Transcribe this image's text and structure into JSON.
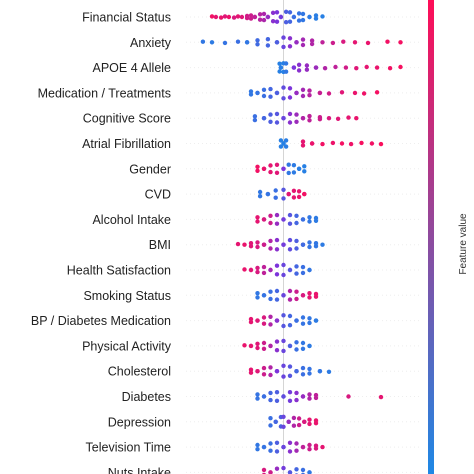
{
  "chart_data": {
    "type": "scatter",
    "subtype": "beeswarm",
    "features": [
      {
        "name": "Financial Status",
        "points": [
          {
            "x": -0.55,
            "v": 0.95
          },
          {
            "x": -0.52,
            "v": 0.9
          },
          {
            "x": -0.48,
            "v": 0.92
          },
          {
            "x": -0.45,
            "v": 0.88
          },
          {
            "x": -0.42,
            "v": 0.93
          },
          {
            "x": -0.38,
            "v": 0.85
          },
          {
            "x": -0.35,
            "v": 0.9
          },
          {
            "x": -0.32,
            "v": 0.87
          },
          {
            "x": -0.28,
            "v": 0.82
          },
          {
            "x": -0.25,
            "v": 0.8
          },
          {
            "x": -0.22,
            "v": 0.75
          },
          {
            "x": -0.18,
            "v": 0.72
          },
          {
            "x": -0.15,
            "v": 0.68
          },
          {
            "x": -0.12,
            "v": 0.6
          },
          {
            "x": -0.08,
            "v": 0.55
          },
          {
            "x": -0.05,
            "v": 0.5
          },
          {
            "x": -0.02,
            "v": 0.45
          },
          {
            "x": 0.02,
            "v": 0.25
          },
          {
            "x": 0.05,
            "v": 0.2
          },
          {
            "x": 0.08,
            "v": 0.15
          },
          {
            "x": 0.12,
            "v": 0.12
          },
          {
            "x": 0.15,
            "v": 0.1
          },
          {
            "x": 0.2,
            "v": 0.08
          },
          {
            "x": 0.25,
            "v": 0.06
          },
          {
            "x": 0.3,
            "v": 0.05
          }
        ]
      },
      {
        "name": "Anxiety",
        "points": [
          {
            "x": -0.62,
            "v": 0.1
          },
          {
            "x": -0.55,
            "v": 0.08
          },
          {
            "x": -0.45,
            "v": 0.12
          },
          {
            "x": -0.35,
            "v": 0.15
          },
          {
            "x": -0.28,
            "v": 0.1
          },
          {
            "x": -0.2,
            "v": 0.18
          },
          {
            "x": -0.12,
            "v": 0.2
          },
          {
            "x": -0.05,
            "v": 0.25
          },
          {
            "x": 0.0,
            "v": 0.4
          },
          {
            "x": 0.05,
            "v": 0.55
          },
          {
            "x": 0.1,
            "v": 0.6
          },
          {
            "x": 0.15,
            "v": 0.65
          },
          {
            "x": 0.22,
            "v": 0.7
          },
          {
            "x": 0.3,
            "v": 0.75
          },
          {
            "x": 0.38,
            "v": 0.8
          },
          {
            "x": 0.46,
            "v": 0.85
          },
          {
            "x": 0.55,
            "v": 0.9
          },
          {
            "x": 0.65,
            "v": 0.92
          },
          {
            "x": 0.8,
            "v": 0.95
          },
          {
            "x": 0.9,
            "v": 0.96
          }
        ]
      },
      {
        "name": "APOE 4 Allele",
        "points": [
          {
            "x": -0.03,
            "v": 0.05
          },
          {
            "x": -0.02,
            "v": 0.06
          },
          {
            "x": 0.0,
            "v": 0.05
          },
          {
            "x": 0.02,
            "v": 0.1
          },
          {
            "x": 0.08,
            "v": 0.5
          },
          {
            "x": 0.12,
            "v": 0.55
          },
          {
            "x": 0.18,
            "v": 0.6
          },
          {
            "x": 0.25,
            "v": 0.62
          },
          {
            "x": 0.32,
            "v": 0.7
          },
          {
            "x": 0.4,
            "v": 0.75
          },
          {
            "x": 0.48,
            "v": 0.82
          },
          {
            "x": 0.56,
            "v": 0.88
          },
          {
            "x": 0.64,
            "v": 0.9
          },
          {
            "x": 0.72,
            "v": 0.92
          },
          {
            "x": 0.82,
            "v": 0.95
          },
          {
            "x": 0.9,
            "v": 0.97
          }
        ]
      },
      {
        "name": "Medication / Treatments",
        "points": [
          {
            "x": -0.25,
            "v": 0.1
          },
          {
            "x": -0.2,
            "v": 0.12
          },
          {
            "x": -0.15,
            "v": 0.15
          },
          {
            "x": -0.1,
            "v": 0.2
          },
          {
            "x": -0.05,
            "v": 0.25
          },
          {
            "x": 0.0,
            "v": 0.35
          },
          {
            "x": 0.05,
            "v": 0.5
          },
          {
            "x": 0.1,
            "v": 0.6
          },
          {
            "x": 0.15,
            "v": 0.65
          },
          {
            "x": 0.2,
            "v": 0.72
          },
          {
            "x": 0.28,
            "v": 0.78
          },
          {
            "x": 0.35,
            "v": 0.82
          },
          {
            "x": 0.45,
            "v": 0.88
          },
          {
            "x": 0.55,
            "v": 0.92
          },
          {
            "x": 0.62,
            "v": 0.94
          },
          {
            "x": 0.72,
            "v": 0.96
          }
        ]
      },
      {
        "name": "Cognitive Score",
        "points": [
          {
            "x": -0.22,
            "v": 0.15
          },
          {
            "x": -0.15,
            "v": 0.2
          },
          {
            "x": -0.1,
            "v": 0.25
          },
          {
            "x": -0.05,
            "v": 0.3
          },
          {
            "x": 0.0,
            "v": 0.4
          },
          {
            "x": 0.05,
            "v": 0.55
          },
          {
            "x": 0.1,
            "v": 0.62
          },
          {
            "x": 0.15,
            "v": 0.7
          },
          {
            "x": 0.2,
            "v": 0.75
          },
          {
            "x": 0.28,
            "v": 0.8
          },
          {
            "x": 0.35,
            "v": 0.85
          },
          {
            "x": 0.42,
            "v": 0.88
          },
          {
            "x": 0.5,
            "v": 0.9
          },
          {
            "x": 0.56,
            "v": 0.92
          }
        ]
      },
      {
        "name": "Atrial Fibrillation",
        "points": [
          {
            "x": -0.02,
            "v": 0.05
          },
          {
            "x": 0.0,
            "v": 0.04
          },
          {
            "x": 0.02,
            "v": 0.06
          },
          {
            "x": 0.15,
            "v": 0.9
          },
          {
            "x": 0.22,
            "v": 0.92
          },
          {
            "x": 0.3,
            "v": 0.95
          },
          {
            "x": 0.38,
            "v": 0.93
          },
          {
            "x": 0.45,
            "v": 0.96
          },
          {
            "x": 0.52,
            "v": 0.94
          },
          {
            "x": 0.6,
            "v": 0.97
          },
          {
            "x": 0.68,
            "v": 0.95
          },
          {
            "x": 0.75,
            "v": 0.98
          }
        ]
      },
      {
        "name": "Gender",
        "points": [
          {
            "x": -0.2,
            "v": 0.95
          },
          {
            "x": -0.15,
            "v": 0.92
          },
          {
            "x": -0.1,
            "v": 0.9
          },
          {
            "x": -0.05,
            "v": 0.88
          },
          {
            "x": 0.0,
            "v": 0.5
          },
          {
            "x": 0.04,
            "v": 0.1
          },
          {
            "x": 0.08,
            "v": 0.08
          },
          {
            "x": 0.12,
            "v": 0.06
          },
          {
            "x": 0.16,
            "v": 0.05
          }
        ]
      },
      {
        "name": "CVD",
        "points": [
          {
            "x": -0.18,
            "v": 0.1
          },
          {
            "x": -0.12,
            "v": 0.12
          },
          {
            "x": -0.06,
            "v": 0.15
          },
          {
            "x": 0.0,
            "v": 0.3
          },
          {
            "x": 0.04,
            "v": 0.88
          },
          {
            "x": 0.08,
            "v": 0.9
          },
          {
            "x": 0.12,
            "v": 0.92
          },
          {
            "x": 0.16,
            "v": 0.95
          }
        ]
      },
      {
        "name": "Alcohol Intake",
        "points": [
          {
            "x": -0.2,
            "v": 0.9
          },
          {
            "x": -0.15,
            "v": 0.85
          },
          {
            "x": -0.1,
            "v": 0.8
          },
          {
            "x": -0.05,
            "v": 0.6
          },
          {
            "x": 0.0,
            "v": 0.45
          },
          {
            "x": 0.05,
            "v": 0.3
          },
          {
            "x": 0.1,
            "v": 0.2
          },
          {
            "x": 0.15,
            "v": 0.15
          },
          {
            "x": 0.2,
            "v": 0.1
          },
          {
            "x": 0.25,
            "v": 0.08
          }
        ]
      },
      {
        "name": "BMI",
        "points": [
          {
            "x": -0.35,
            "v": 0.9
          },
          {
            "x": -0.3,
            "v": 0.92
          },
          {
            "x": -0.25,
            "v": 0.88
          },
          {
            "x": -0.2,
            "v": 0.85
          },
          {
            "x": -0.15,
            "v": 0.8
          },
          {
            "x": -0.1,
            "v": 0.7
          },
          {
            "x": -0.05,
            "v": 0.55
          },
          {
            "x": 0.0,
            "v": 0.45
          },
          {
            "x": 0.05,
            "v": 0.35
          },
          {
            "x": 0.1,
            "v": 0.25
          },
          {
            "x": 0.15,
            "v": 0.18
          },
          {
            "x": 0.2,
            "v": 0.12
          },
          {
            "x": 0.25,
            "v": 0.1
          },
          {
            "x": 0.3,
            "v": 0.08
          }
        ]
      },
      {
        "name": "Health Satisfaction",
        "points": [
          {
            "x": -0.3,
            "v": 0.92
          },
          {
            "x": -0.25,
            "v": 0.88
          },
          {
            "x": -0.2,
            "v": 0.85
          },
          {
            "x": -0.15,
            "v": 0.75
          },
          {
            "x": -0.1,
            "v": 0.65
          },
          {
            "x": -0.05,
            "v": 0.5
          },
          {
            "x": 0.0,
            "v": 0.4
          },
          {
            "x": 0.05,
            "v": 0.3
          },
          {
            "x": 0.1,
            "v": 0.2
          },
          {
            "x": 0.15,
            "v": 0.15
          },
          {
            "x": 0.2,
            "v": 0.1
          }
        ]
      },
      {
        "name": "Smoking Status",
        "points": [
          {
            "x": -0.2,
            "v": 0.1
          },
          {
            "x": -0.15,
            "v": 0.12
          },
          {
            "x": -0.1,
            "v": 0.15
          },
          {
            "x": -0.05,
            "v": 0.2
          },
          {
            "x": 0.0,
            "v": 0.4
          },
          {
            "x": 0.05,
            "v": 0.7
          },
          {
            "x": 0.1,
            "v": 0.8
          },
          {
            "x": 0.15,
            "v": 0.85
          },
          {
            "x": 0.2,
            "v": 0.9
          },
          {
            "x": 0.25,
            "v": 0.92
          }
        ]
      },
      {
        "name": "BP / Diabetes Medication",
        "points": [
          {
            "x": -0.25,
            "v": 0.9
          },
          {
            "x": -0.2,
            "v": 0.88
          },
          {
            "x": -0.15,
            "v": 0.85
          },
          {
            "x": -0.1,
            "v": 0.7
          },
          {
            "x": -0.05,
            "v": 0.55
          },
          {
            "x": 0.0,
            "v": 0.3
          },
          {
            "x": 0.05,
            "v": 0.2
          },
          {
            "x": 0.1,
            "v": 0.15
          },
          {
            "x": 0.15,
            "v": 0.12
          },
          {
            "x": 0.2,
            "v": 0.1
          },
          {
            "x": 0.25,
            "v": 0.08
          }
        ]
      },
      {
        "name": "Physical Activity",
        "points": [
          {
            "x": -0.3,
            "v": 0.92
          },
          {
            "x": -0.25,
            "v": 0.9
          },
          {
            "x": -0.2,
            "v": 0.88
          },
          {
            "x": -0.15,
            "v": 0.8
          },
          {
            "x": -0.1,
            "v": 0.7
          },
          {
            "x": -0.05,
            "v": 0.55
          },
          {
            "x": 0.0,
            "v": 0.4
          },
          {
            "x": 0.05,
            "v": 0.25
          },
          {
            "x": 0.1,
            "v": 0.15
          },
          {
            "x": 0.15,
            "v": 0.1
          },
          {
            "x": 0.2,
            "v": 0.08
          }
        ]
      },
      {
        "name": "Cholesterol",
        "points": [
          {
            "x": -0.25,
            "v": 0.9
          },
          {
            "x": -0.2,
            "v": 0.88
          },
          {
            "x": -0.15,
            "v": 0.8
          },
          {
            "x": -0.1,
            "v": 0.7
          },
          {
            "x": -0.05,
            "v": 0.5
          },
          {
            "x": 0.0,
            "v": 0.4
          },
          {
            "x": 0.05,
            "v": 0.3
          },
          {
            "x": 0.1,
            "v": 0.2
          },
          {
            "x": 0.15,
            "v": 0.15
          },
          {
            "x": 0.2,
            "v": 0.12
          },
          {
            "x": 0.28,
            "v": 0.1
          },
          {
            "x": 0.35,
            "v": 0.08
          }
        ]
      },
      {
        "name": "Diabetes",
        "points": [
          {
            "x": -0.2,
            "v": 0.12
          },
          {
            "x": -0.15,
            "v": 0.15
          },
          {
            "x": -0.1,
            "v": 0.2
          },
          {
            "x": -0.05,
            "v": 0.25
          },
          {
            "x": 0.0,
            "v": 0.35
          },
          {
            "x": 0.05,
            "v": 0.45
          },
          {
            "x": 0.1,
            "v": 0.55
          },
          {
            "x": 0.15,
            "v": 0.6
          },
          {
            "x": 0.2,
            "v": 0.7
          },
          {
            "x": 0.25,
            "v": 0.75
          },
          {
            "x": 0.5,
            "v": 0.85
          },
          {
            "x": 0.75,
            "v": 0.9
          }
        ]
      },
      {
        "name": "Depression",
        "points": [
          {
            "x": -0.1,
            "v": 0.15
          },
          {
            "x": -0.06,
            "v": 0.2
          },
          {
            "x": -0.02,
            "v": 0.25
          },
          {
            "x": 0.0,
            "v": 0.4
          },
          {
            "x": 0.04,
            "v": 0.6
          },
          {
            "x": 0.08,
            "v": 0.7
          },
          {
            "x": 0.12,
            "v": 0.8
          },
          {
            "x": 0.16,
            "v": 0.85
          },
          {
            "x": 0.2,
            "v": 0.9
          },
          {
            "x": 0.25,
            "v": 0.92
          }
        ]
      },
      {
        "name": "Television Time",
        "points": [
          {
            "x": -0.2,
            "v": 0.1
          },
          {
            "x": -0.15,
            "v": 0.12
          },
          {
            "x": -0.1,
            "v": 0.15
          },
          {
            "x": -0.05,
            "v": 0.25
          },
          {
            "x": 0.0,
            "v": 0.4
          },
          {
            "x": 0.05,
            "v": 0.55
          },
          {
            "x": 0.1,
            "v": 0.65
          },
          {
            "x": 0.15,
            "v": 0.75
          },
          {
            "x": 0.2,
            "v": 0.8
          },
          {
            "x": 0.25,
            "v": 0.85
          },
          {
            "x": 0.3,
            "v": 0.9
          }
        ]
      },
      {
        "name": "Nuts Intake",
        "points": [
          {
            "x": -0.15,
            "v": 0.85
          },
          {
            "x": -0.1,
            "v": 0.8
          },
          {
            "x": -0.05,
            "v": 0.6
          },
          {
            "x": 0.0,
            "v": 0.45
          },
          {
            "x": 0.05,
            "v": 0.3
          },
          {
            "x": 0.1,
            "v": 0.2
          },
          {
            "x": 0.15,
            "v": 0.15
          },
          {
            "x": 0.2,
            "v": 0.1
          }
        ]
      }
    ],
    "xlim": [
      -0.75,
      1.05
    ],
    "zero_line": true,
    "colorbar": {
      "title": "Feature value",
      "low_color": "#1e88e5",
      "high_color": "#ff0d57"
    },
    "legend_placement": "right"
  }
}
